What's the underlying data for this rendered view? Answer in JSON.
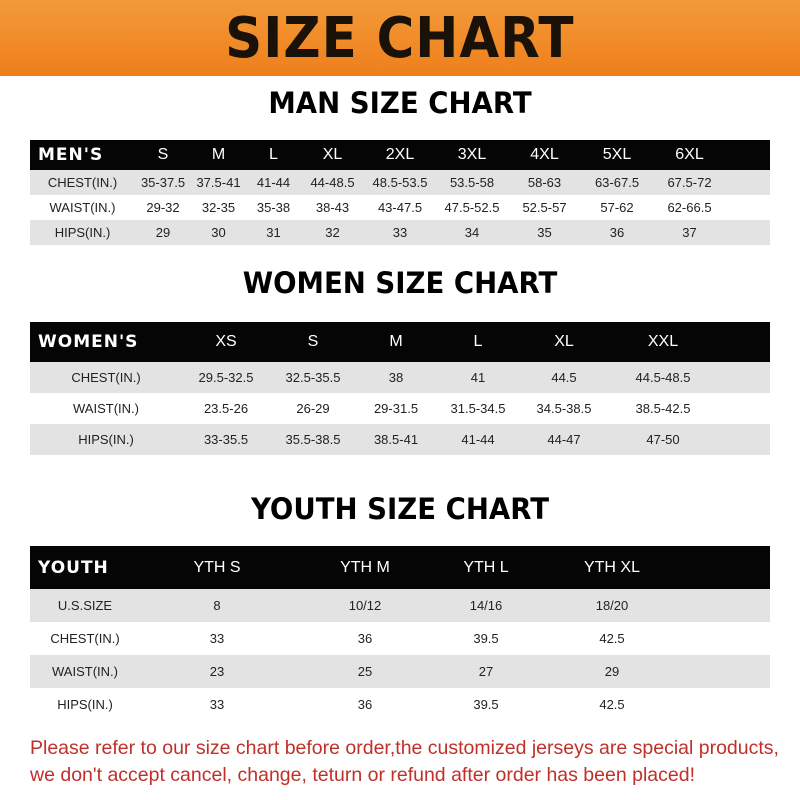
{
  "banner_title": "SIZE CHART",
  "men": {
    "title": "MAN SIZE CHART",
    "header": "MEN'S",
    "sizes": [
      "S",
      "M",
      "L",
      "XL",
      "2XL",
      "3XL",
      "4XL",
      "5XL",
      "6XL"
    ],
    "rows": [
      {
        "label": "CHEST(IN.)",
        "values": [
          "35-37.5",
          "37.5-41",
          "41-44",
          "44-48.5",
          "48.5-53.5",
          "53.5-58",
          "58-63",
          "63-67.5",
          "67.5-72"
        ]
      },
      {
        "label": "WAIST(IN.)",
        "values": [
          "29-32",
          "32-35",
          "35-38",
          "38-43",
          "43-47.5",
          "47.5-52.5",
          "52.5-57",
          "57-62",
          "62-66.5"
        ]
      },
      {
        "label": "HIPS(IN.)",
        "values": [
          "29",
          "30",
          "31",
          "32",
          "33",
          "34",
          "35",
          "36",
          "37"
        ]
      }
    ]
  },
  "women": {
    "title": "WOMEN SIZE CHART",
    "header": "WOMEN'S",
    "sizes": [
      "XS",
      "S",
      "M",
      "L",
      "XL",
      "XXL"
    ],
    "rows": [
      {
        "label": "CHEST(IN.)",
        "values": [
          "29.5-32.5",
          "32.5-35.5",
          "38",
          "41",
          "44.5",
          "44.5-48.5"
        ]
      },
      {
        "label": "WAIST(IN.)",
        "values": [
          "23.5-26",
          "26-29",
          "29-31.5",
          "31.5-34.5",
          "34.5-38.5",
          "38.5-42.5"
        ]
      },
      {
        "label": "HIPS(IN.)",
        "values": [
          "33-35.5",
          "35.5-38.5",
          "38.5-41",
          "41-44",
          "44-47",
          "47-50"
        ]
      }
    ]
  },
  "youth": {
    "title": "YOUTH SIZE CHART",
    "header": "YOUTH",
    "sizes": [
      "YTH S",
      "YTH M",
      "YTH L",
      "YTH XL"
    ],
    "rows": [
      {
        "label": "U.S.SIZE",
        "values": [
          "8",
          "10/12",
          "14/16",
          "18/20"
        ]
      },
      {
        "label": "CHEST(IN.)",
        "values": [
          "33",
          "36",
          "39.5",
          "42.5"
        ]
      },
      {
        "label": "WAIST(IN.)",
        "values": [
          "23",
          "25",
          "27",
          "29"
        ]
      },
      {
        "label": "HIPS(IN.)",
        "values": [
          "33",
          "36",
          "39.5",
          "42.5"
        ]
      }
    ]
  },
  "note": [
    "Please refer to our size chart before order,the customized jerseys are special products,",
    "we don't accept cancel, change, teturn or refund after order has been placed!"
  ]
}
